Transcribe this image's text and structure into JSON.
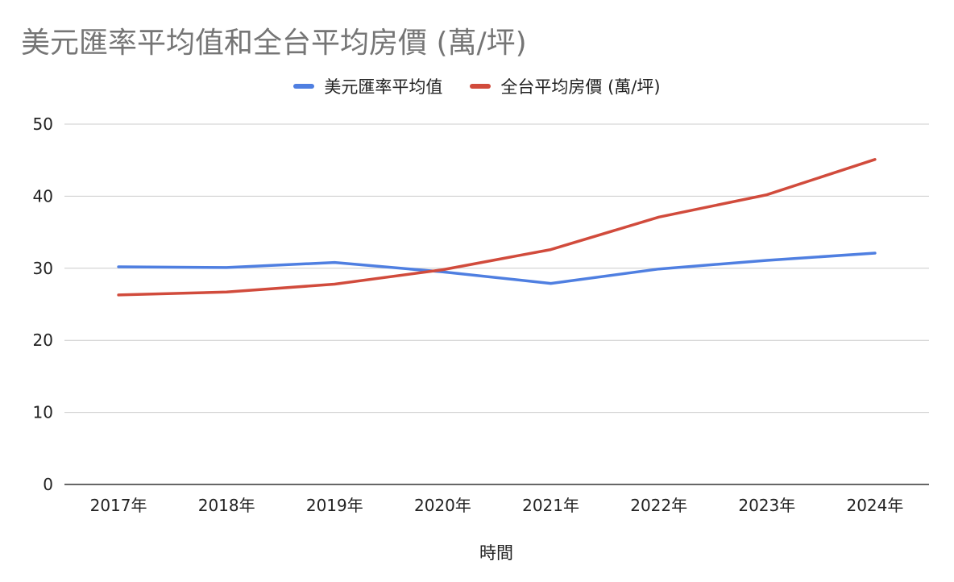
{
  "chart_data": {
    "type": "line",
    "title": "美元匯率平均值和全台平均房價 (萬/坪)",
    "xlabel": "時間",
    "ylabel": "",
    "categories": [
      "2017年",
      "2018年",
      "2019年",
      "2020年",
      "2021年",
      "2022年",
      "2023年",
      "2024年"
    ],
    "ylim": [
      0,
      50
    ],
    "yticks": [
      0,
      10,
      20,
      30,
      40,
      50
    ],
    "grid": true,
    "legend_position": "top",
    "series": [
      {
        "name": "美元匯率平均值",
        "color": "#4f7fe1",
        "values": [
          30.2,
          30.1,
          30.8,
          29.5,
          27.9,
          29.9,
          31.1,
          32.1
        ]
      },
      {
        "name": "全台平均房價 (萬/坪)",
        "color": "#d14b3c",
        "values": [
          26.3,
          26.7,
          27.8,
          29.8,
          32.6,
          37.1,
          40.2,
          45.1
        ]
      }
    ]
  }
}
